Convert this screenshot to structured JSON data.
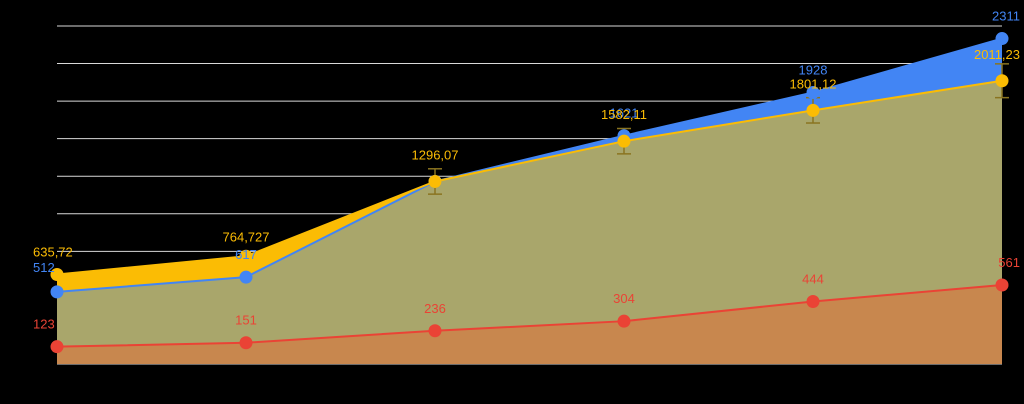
{
  "chart_data": {
    "type": "area",
    "title": "",
    "xlabel": "",
    "ylabel": "",
    "ylim": [
      0,
      2400
    ],
    "grid": true,
    "categories": [
      "",
      "",
      "",
      "",
      "",
      ""
    ],
    "series": [
      {
        "color": "#4285F4",
        "values": [
          512,
          617,
          1296.07,
          1621,
          1928,
          2311
        ],
        "labels": [
          "512",
          "617",
          "",
          "1621",
          "1928",
          "2311"
        ]
      },
      {
        "color": "#FBBC04",
        "values": [
          635.72,
          764.727,
          1296.07,
          1582.11,
          1801.12,
          2011.23
        ],
        "labels": [
          "635,72",
          "764,727",
          "1296,07",
          "1582,11",
          "1801,12",
          "2011,23"
        ],
        "error_bars": [
          0,
          0,
          90,
          90,
          90,
          120
        ]
      },
      {
        "color": "#EA4335",
        "values": [
          123,
          151,
          236,
          304,
          444,
          561
        ],
        "labels": [
          "123",
          "151",
          "236",
          "304",
          "444",
          "561"
        ]
      }
    ]
  },
  "colors": {
    "background": "#000000",
    "gridline": "#FFFFFF",
    "overlap_fill": "#A9A66B",
    "red_fill": "#C8874E"
  }
}
